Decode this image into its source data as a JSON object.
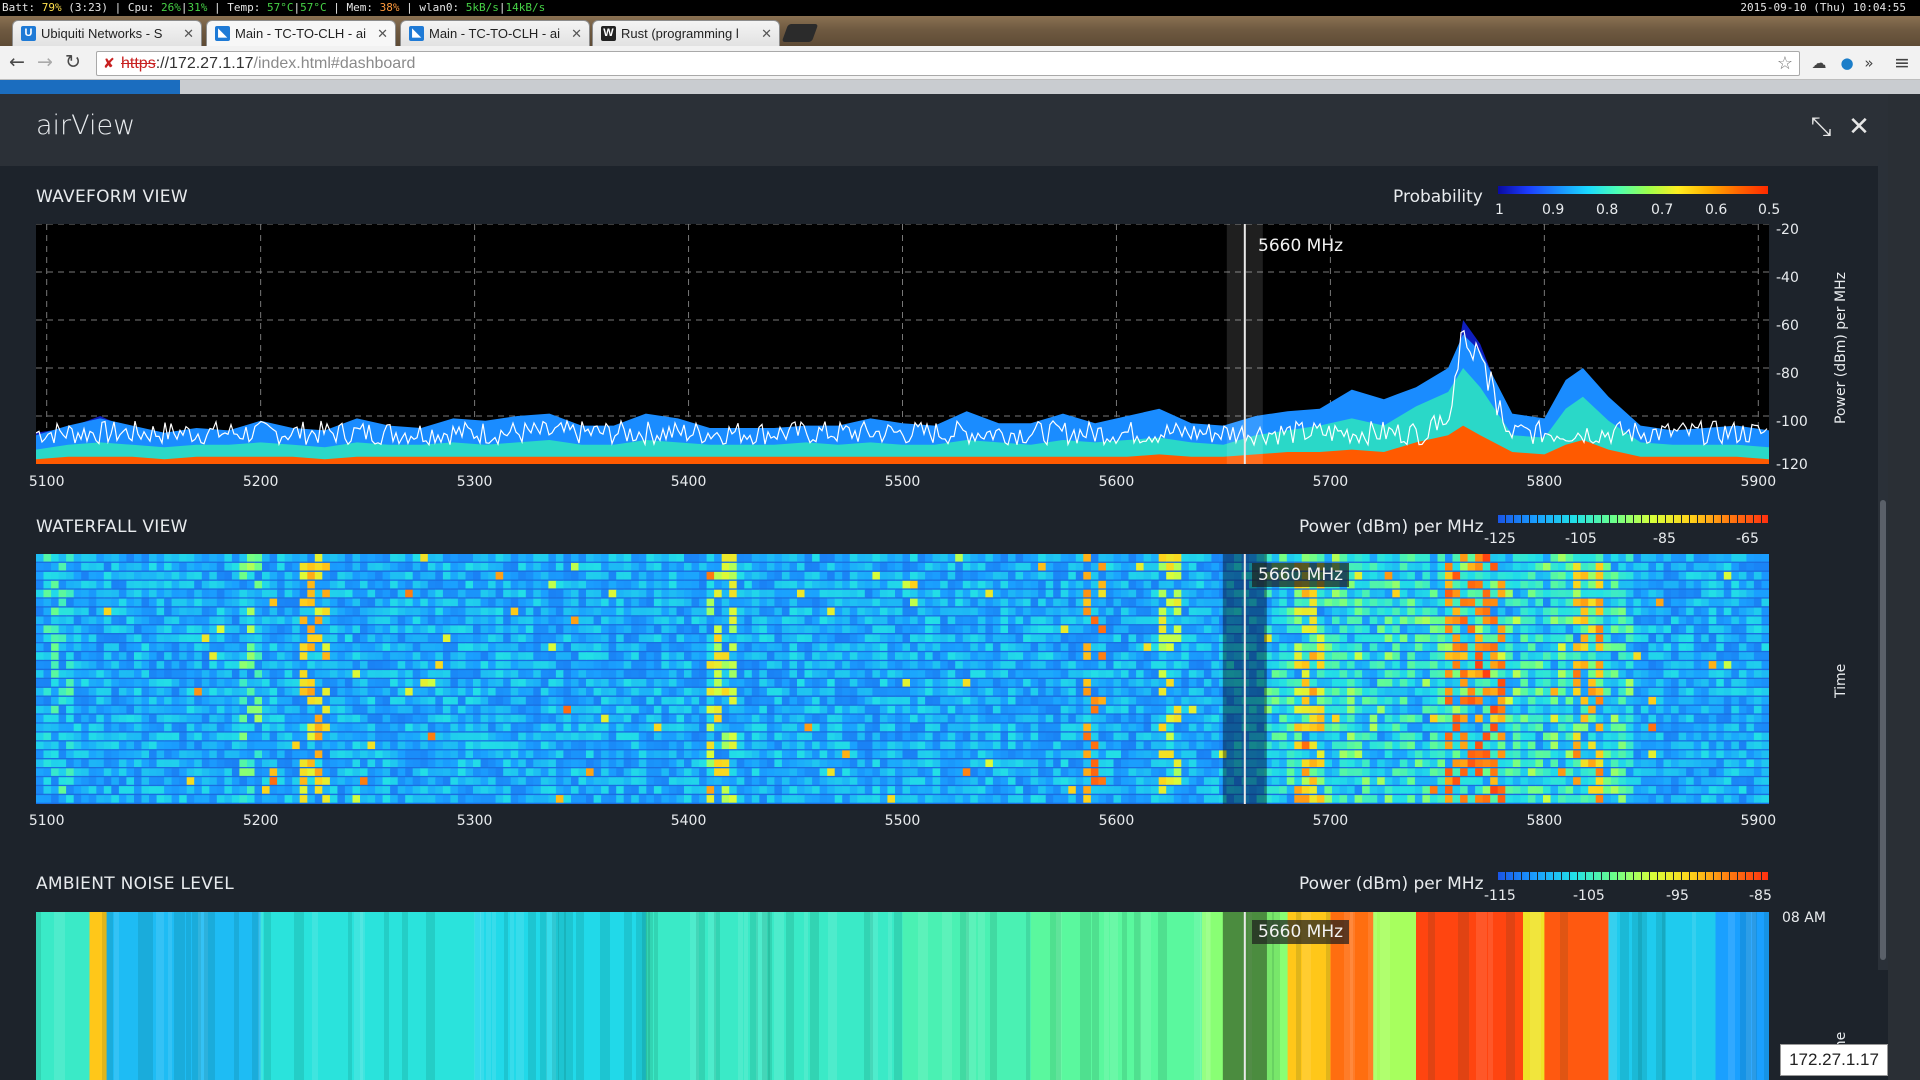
{
  "statusbar": {
    "batt_label": "Batt:",
    "batt_value": "79%",
    "batt_time": "(3:23)",
    "cpu_label": "Cpu:",
    "cpu_value_1": "26%",
    "cpu_value_2": "31%",
    "temp_label": "Temp:",
    "temp_value_1": "57°C",
    "temp_value_2": "57°C",
    "mem_label": "Mem:",
    "mem_value": "38%",
    "net_label": "wlan0:",
    "net_down": "5kB/s",
    "net_up": "14kB/s",
    "datetime": "2015-09-10 (Thu) 10:04:55"
  },
  "tabs": [
    {
      "title": "Ubiquiti Networks - S",
      "favicon": "U",
      "favicon_color": "#1e7ad6"
    },
    {
      "title": "Main - TC-TO-CLH - ai",
      "favicon": "◣",
      "favicon_color": "#1e7ad6"
    },
    {
      "title": "Main - TC-TO-CLH - ai",
      "favicon": "◣",
      "favicon_color": "#1e7ad6"
    },
    {
      "title": "Rust (programming l",
      "favicon": "W",
      "favicon_color": "#222222"
    }
  ],
  "address": {
    "scheme": "https",
    "host": "://172.27.1.17",
    "path": "/index.html#dashboard"
  },
  "modal": {
    "title": "airView"
  },
  "waveform": {
    "label": "WAVEFORM VIEW",
    "legend_label": "Probability",
    "legend_ticks": [
      "1",
      "0.9",
      "0.8",
      "0.7",
      "0.6",
      "0.5"
    ],
    "y_axis_label": "Power (dBm) per MHz",
    "y_ticks": [
      "-20",
      "-40",
      "-60",
      "-80",
      "-100",
      "-120"
    ],
    "marker": "5660 MHz"
  },
  "waterfall": {
    "label": "WATERFALL VIEW",
    "legend_label": "Power (dBm) per MHz",
    "legend_ticks": [
      "-125",
      "-105",
      "-85",
      "-65"
    ],
    "y_axis_label": "Time",
    "marker": "5660 MHz"
  },
  "ambient": {
    "label": "AMBIENT NOISE LEVEL",
    "legend_label": "Power (dBm) per MHz",
    "legend_ticks": [
      "-115",
      "-105",
      "-95",
      "-85"
    ],
    "time_tick": "08 AM",
    "y_axis_label": "me",
    "marker": "5660 MHz"
  },
  "x_ticks": [
    "5100",
    "5200",
    "5300",
    "5400",
    "5500",
    "5600",
    "5700",
    "5800",
    "5900"
  ],
  "ip_badge": "172.27.1.17",
  "colors": {
    "accent": "#1b6dbf",
    "cursor": "#e9e9e9",
    "noise_floor": "#ff5a00",
    "trace": "#ffffff"
  },
  "chart_data": [
    {
      "type": "area",
      "title": "WAVEFORM VIEW",
      "xlabel": "",
      "ylabel": "Power (dBm) per MHz",
      "xlim": [
        5095,
        5905
      ],
      "ylim": [
        -120,
        -20
      ],
      "x": [
        5095,
        5110,
        5125,
        5140,
        5155,
        5170,
        5185,
        5200,
        5215,
        5230,
        5245,
        5260,
        5275,
        5290,
        5305,
        5320,
        5335,
        5350,
        5365,
        5380,
        5395,
        5410,
        5425,
        5440,
        5455,
        5470,
        5485,
        5500,
        5515,
        5530,
        5545,
        5560,
        5575,
        5590,
        5605,
        5620,
        5635,
        5650,
        5665,
        5680,
        5695,
        5710,
        5725,
        5740,
        5755,
        5762,
        5770,
        5785,
        5800,
        5810,
        5818,
        5830,
        5845,
        5860,
        5875,
        5890,
        5905
      ],
      "series": [
        {
          "values": [
            -107,
            -105,
            -100,
            -106,
            -108,
            -106,
            -107,
            -104,
            -106,
            -107,
            -104,
            -106,
            -107,
            -105,
            -106,
            -104,
            -103,
            -107,
            -106,
            -103,
            -105,
            -107,
            -106,
            -107,
            -106,
            -107,
            -104,
            -106,
            -107,
            -103,
            -106,
            -105,
            -104,
            -107,
            -106,
            -103,
            -107,
            -105,
            -106,
            -104,
            -107,
            -105,
            -100,
            -103,
            -97,
            -60,
            -70,
            -104,
            -106,
            -105,
            -103,
            -106,
            -105,
            -107,
            -106,
            -105,
            -107
          ]
        },
        {
          "values": [
            -108,
            -104,
            -101,
            -104,
            -107,
            -105,
            -106,
            -102,
            -105,
            -106,
            -101,
            -104,
            -105,
            -101,
            -102,
            -100,
            -99,
            -104,
            -104,
            -99,
            -101,
            -105,
            -105,
            -105,
            -104,
            -104,
            -101,
            -103,
            -104,
            -98,
            -103,
            -103,
            -99,
            -103,
            -100,
            -97,
            -103,
            -104,
            -100,
            -98,
            -97,
            -89,
            -93,
            -88,
            -80,
            -66,
            -73,
            -99,
            -101,
            -85,
            -80,
            -92,
            -104,
            -106,
            -105,
            -104,
            -106
          ]
        },
        {
          "values": [
            -114,
            -112,
            -111,
            -112,
            -113,
            -112,
            -112,
            -111,
            -112,
            -113,
            -111,
            -112,
            -112,
            -111,
            -112,
            -111,
            -110,
            -112,
            -112,
            -110,
            -111,
            -112,
            -112,
            -112,
            -111,
            -112,
            -111,
            -112,
            -112,
            -110,
            -111,
            -112,
            -110,
            -111,
            -110,
            -109,
            -111,
            -112,
            -108,
            -106,
            -104,
            -101,
            -104,
            -96,
            -90,
            -80,
            -88,
            -108,
            -109,
            -97,
            -92,
            -102,
            -111,
            -112,
            -112,
            -112,
            -113
          ]
        },
        {
          "values": [
            -118,
            -117,
            -117,
            -117,
            -118,
            -117,
            -117,
            -117,
            -117,
            -118,
            -117,
            -117,
            -117,
            -117,
            -117,
            -117,
            -117,
            -117,
            -117,
            -117,
            -117,
            -117,
            -117,
            -117,
            -117,
            -117,
            -117,
            -117,
            -117,
            -117,
            -117,
            -117,
            -117,
            -117,
            -117,
            -116,
            -117,
            -117,
            -116,
            -115,
            -115,
            -114,
            -115,
            -111,
            -108,
            -104,
            -108,
            -115,
            -116,
            -112,
            -110,
            -114,
            -117,
            -117,
            -117,
            -117,
            -118
          ]
        }
      ]
    },
    {
      "type": "heatmap",
      "title": "WATERFALL VIEW",
      "xlabel": "",
      "ylabel": "Time",
      "xlim": [
        5095,
        5905
      ],
      "color_scale": {
        "min": -125,
        "max": -65,
        "ticks": [
          -125,
          -105,
          -85,
          -65
        ]
      },
      "hot_spots": [
        {
          "x": 5105,
          "level": -95
        },
        {
          "x": 5195,
          "level": -90
        },
        {
          "x": 5225,
          "level": -75
        },
        {
          "x": 5415,
          "level": -80
        },
        {
          "x": 5590,
          "level": -70
        },
        {
          "x": 5625,
          "level": -80
        },
        {
          "x": 5690,
          "level": -75
        },
        {
          "x": 5760,
          "level": -68
        },
        {
          "x": 5775,
          "level": -66
        },
        {
          "x": 5820,
          "level": -72
        }
      ]
    },
    {
      "type": "heatmap",
      "title": "AMBIENT NOISE LEVEL",
      "xlabel": "",
      "ylabel": "Time",
      "xlim": [
        5095,
        5905
      ],
      "color_scale": {
        "min": -115,
        "max": -85,
        "ticks": [
          -115,
          -105,
          -95,
          -85
        ]
      },
      "time_label": "08 AM",
      "bands": [
        {
          "from": 5095,
          "to": 5120,
          "level": -103
        },
        {
          "from": 5120,
          "to": 5128,
          "level": -92
        },
        {
          "from": 5128,
          "to": 5200,
          "level": -107
        },
        {
          "from": 5200,
          "to": 5300,
          "level": -104
        },
        {
          "from": 5300,
          "to": 5380,
          "level": -105
        },
        {
          "from": 5380,
          "to": 5500,
          "level": -103
        },
        {
          "from": 5500,
          "to": 5560,
          "level": -102
        },
        {
          "from": 5560,
          "to": 5640,
          "level": -101
        },
        {
          "from": 5640,
          "to": 5680,
          "level": -99
        },
        {
          "from": 5680,
          "to": 5700,
          "level": -92
        },
        {
          "from": 5700,
          "to": 5720,
          "level": -88
        },
        {
          "from": 5720,
          "to": 5740,
          "level": -98
        },
        {
          "from": 5740,
          "to": 5790,
          "level": -86
        },
        {
          "from": 5790,
          "to": 5800,
          "level": -94
        },
        {
          "from": 5800,
          "to": 5830,
          "level": -87
        },
        {
          "from": 5830,
          "to": 5880,
          "level": -106
        },
        {
          "from": 5880,
          "to": 5905,
          "level": -109
        }
      ]
    }
  ]
}
